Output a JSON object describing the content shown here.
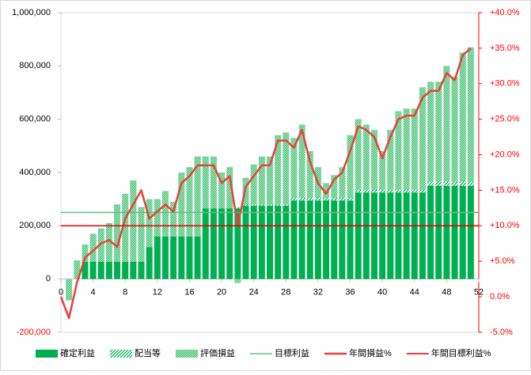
{
  "chart_data": {
    "type": "bar",
    "x": [
      0,
      1,
      2,
      3,
      4,
      5,
      6,
      7,
      8,
      9,
      10,
      11,
      12,
      13,
      14,
      15,
      16,
      17,
      18,
      19,
      20,
      21,
      22,
      23,
      24,
      25,
      26,
      27,
      28,
      29,
      30,
      31,
      32,
      33,
      34,
      35,
      36,
      37,
      38,
      39,
      40,
      41,
      42,
      43,
      44,
      45,
      46,
      47,
      48,
      49,
      50,
      51
    ],
    "xlim": [
      0,
      52
    ],
    "xticks": [
      0,
      4,
      8,
      12,
      16,
      20,
      24,
      28,
      32,
      36,
      40,
      44,
      48,
      52
    ],
    "ylim": [
      -200000,
      1000000
    ],
    "yticks": [
      {
        "value": -200000,
        "label": "-200,000"
      },
      0,
      {
        "value": 200000,
        "label": "200,000"
      },
      {
        "value": 400000,
        "label": "400,000"
      },
      {
        "value": 600000,
        "label": "600,000"
      },
      {
        "value": 800000,
        "label": "800,000"
      },
      {
        "value": 1000000,
        "label": "1,000,000"
      }
    ],
    "y2lim": [
      -5,
      40
    ],
    "y2ticks": [
      {
        "value": -5,
        "label": "-5.0%"
      },
      {
        "value": 0,
        "label": "0.0%"
      },
      {
        "value": 5,
        "label": "+5.0%"
      },
      {
        "value": 10,
        "label": "+10.0%"
      },
      {
        "value": 15,
        "label": "+15.0%"
      },
      {
        "value": 20,
        "label": "+20.0%"
      },
      {
        "value": 25,
        "label": "+25.0%"
      },
      {
        "value": 30,
        "label": "+30.0%"
      },
      {
        "value": 35,
        "label": "+35.0%"
      },
      {
        "value": 40,
        "label": "+40.0%"
      }
    ],
    "series": [
      {
        "name": "確定利益",
        "color": "#00b050",
        "fill": "solid",
        "values": [
          null,
          0,
          0,
          65000,
          65000,
          65000,
          65000,
          65000,
          65000,
          65000,
          65000,
          120000,
          160000,
          160000,
          160000,
          160000,
          160000,
          160000,
          265000,
          265000,
          265000,
          265000,
          265000,
          275000,
          275000,
          275000,
          275000,
          275000,
          275000,
          295000,
          295000,
          295000,
          295000,
          295000,
          295000,
          295000,
          295000,
          325000,
          325000,
          325000,
          325000,
          325000,
          325000,
          325000,
          325000,
          325000,
          350000,
          350000,
          350000,
          350000,
          350000,
          350000
        ]
      },
      {
        "name": "配当等",
        "color": "#00b050",
        "fill": "hatch",
        "values": [
          null,
          0,
          0,
          0,
          0,
          0,
          0,
          0,
          0,
          0,
          0,
          0,
          0,
          0,
          0,
          0,
          0,
          0,
          0,
          0,
          0,
          0,
          5000,
          5000,
          5000,
          5000,
          5000,
          5000,
          5000,
          10000,
          10000,
          10000,
          10000,
          10000,
          10000,
          10000,
          10000,
          10000,
          10000,
          10000,
          10000,
          10000,
          10000,
          10000,
          10000,
          10000,
          15000,
          15000,
          15000,
          15000,
          15000,
          15000
        ]
      },
      {
        "name": "評価損益",
        "color": "#00b050",
        "fill": "dots",
        "values": [
          null,
          -80000,
          70000,
          65000,
          105000,
          125000,
          145000,
          215000,
          255000,
          305000,
          205000,
          180000,
          140000,
          170000,
          130000,
          240000,
          260000,
          300000,
          195000,
          195000,
          135000,
          155000,
          -15000,
          100000,
          150000,
          180000,
          180000,
          260000,
          270000,
          225000,
          275000,
          175000,
          115000,
          55000,
          85000,
          115000,
          235000,
          265000,
          245000,
          225000,
          145000,
          225000,
          295000,
          305000,
          305000,
          385000,
          375000,
          375000,
          435000,
          395000,
          485000,
          505000
        ]
      }
    ],
    "lines": [
      {
        "name": "目標利益",
        "color": "#5fbf7f",
        "value": 250000
      },
      {
        "name": "年間損益%",
        "color": "#e8403a",
        "axis": "y2",
        "values": [
          0,
          -3,
          2,
          5.5,
          6.5,
          7.5,
          8,
          7,
          11,
          13,
          15,
          11,
          12,
          13,
          12,
          16,
          17,
          18.5,
          18.5,
          18.5,
          16,
          17,
          10,
          15.5,
          17,
          18.5,
          18.5,
          22,
          22,
          21,
          23.5,
          19,
          16,
          14.5,
          16.5,
          17.5,
          20.5,
          24,
          23.5,
          22.5,
          19.5,
          22.5,
          25,
          25.5,
          25.5,
          28,
          29,
          29,
          31.5,
          30.5,
          34,
          35
        ]
      },
      {
        "name": "年間目標利益%",
        "color": "#e00000",
        "axis": "y2",
        "value": 10
      }
    ]
  }
}
